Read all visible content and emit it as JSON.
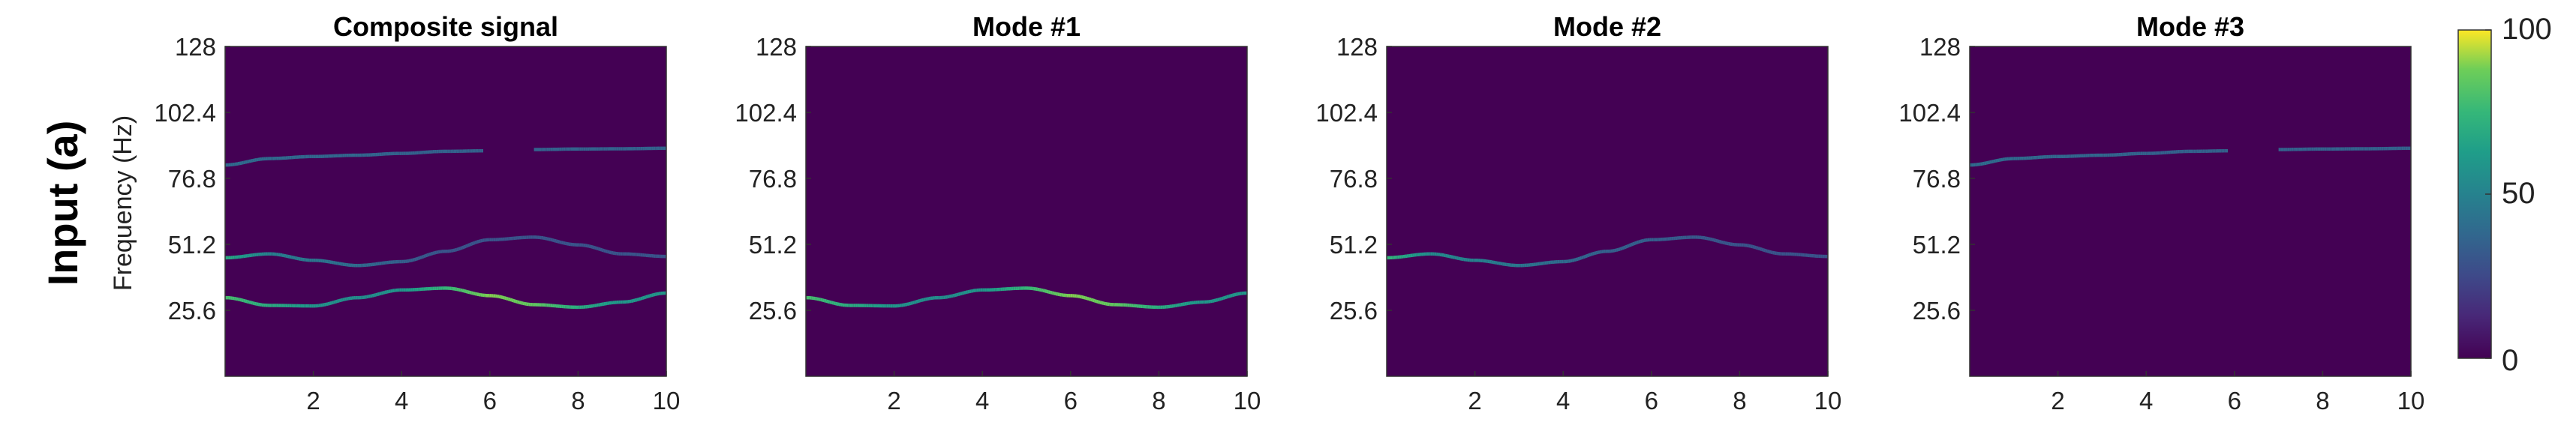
{
  "row_label": "Input (a)",
  "ylabel": "Frequency (Hz)",
  "colorbar": {
    "min": 0,
    "max": 100,
    "ticks": [
      "100",
      "50",
      "0"
    ],
    "colormap": "viridis",
    "colors": {
      "low": "#440154",
      "mid": "#21918c",
      "high": "#fde725"
    }
  },
  "chart_data": [
    {
      "type": "heatmap",
      "title": "Composite signal",
      "xlim": [
        0,
        10
      ],
      "ylim": [
        0,
        128
      ],
      "x_ticks": [
        "2",
        "4",
        "6",
        "8",
        "10"
      ],
      "y_ticks": [
        "128",
        "102.4",
        "76.8",
        "51.2",
        "25.6"
      ],
      "background_value": 0,
      "series": [
        {
          "x": [
            0,
            1,
            2,
            3,
            4,
            5,
            6,
            7,
            8,
            9,
            10
          ],
          "y": [
            30.5,
            27.5,
            27.3,
            30.5,
            33.5,
            34.2,
            31.3,
            27.8,
            26.8,
            28.8,
            32.3
          ],
          "values": [
            80,
            70,
            60,
            55,
            60,
            75,
            90,
            85,
            70,
            60,
            60
          ]
        },
        {
          "x": [
            0,
            1,
            2,
            3,
            4,
            5,
            6,
            7,
            8,
            9,
            10
          ],
          "y": [
            46.0,
            47.5,
            45.0,
            43.0,
            44.5,
            48.5,
            53.0,
            54.0,
            51.0,
            47.5,
            46.5
          ],
          "values": [
            70,
            50,
            45,
            40,
            35,
            30,
            30,
            30,
            30,
            30,
            30
          ]
        },
        {
          "x": [
            0,
            1,
            2,
            3,
            4,
            5,
            5.85
          ],
          "y": [
            82.0,
            84.5,
            85.3,
            85.8,
            86.5,
            87.3,
            87.5
          ],
          "values": [
            40,
            40,
            38,
            38,
            36,
            36,
            36
          ]
        },
        {
          "x": [
            7.0,
            8,
            9,
            10
          ],
          "y": [
            88.0,
            88.2,
            88.3,
            88.5
          ],
          "values": [
            36,
            36,
            36,
            36
          ]
        }
      ]
    },
    {
      "type": "heatmap",
      "title": "Mode #1",
      "xlim": [
        0,
        10
      ],
      "ylim": [
        0,
        128
      ],
      "x_ticks": [
        "2",
        "4",
        "6",
        "8",
        "10"
      ],
      "y_ticks": [
        "128",
        "102.4",
        "76.8",
        "51.2",
        "25.6"
      ],
      "background_value": 0,
      "series": [
        {
          "x": [
            0,
            1,
            2,
            3,
            4,
            5,
            6,
            7,
            8,
            9,
            10
          ],
          "y": [
            30.5,
            27.5,
            27.3,
            30.5,
            33.5,
            34.2,
            31.3,
            27.8,
            26.8,
            28.8,
            32.3
          ],
          "values": [
            80,
            70,
            60,
            55,
            60,
            75,
            90,
            85,
            70,
            60,
            60
          ]
        }
      ]
    },
    {
      "type": "heatmap",
      "title": "Mode #2",
      "xlim": [
        0,
        10
      ],
      "ylim": [
        0,
        128
      ],
      "x_ticks": [
        "2",
        "4",
        "6",
        "8",
        "10"
      ],
      "y_ticks": [
        "128",
        "102.4",
        "76.8",
        "51.2",
        "25.6"
      ],
      "background_value": 0,
      "series": [
        {
          "x": [
            0,
            1,
            2,
            3,
            4,
            5,
            6,
            7,
            8,
            9,
            10
          ],
          "y": [
            46.0,
            47.5,
            45.0,
            43.0,
            44.5,
            48.5,
            53.0,
            54.0,
            51.0,
            47.5,
            46.5
          ],
          "values": [
            75,
            55,
            50,
            45,
            40,
            35,
            35,
            32,
            30,
            30,
            30
          ]
        }
      ]
    },
    {
      "type": "heatmap",
      "title": "Mode #3",
      "xlim": [
        0,
        10
      ],
      "ylim": [
        0,
        128
      ],
      "x_ticks": [
        "2",
        "4",
        "6",
        "8",
        "10"
      ],
      "y_ticks": [
        "128",
        "102.4",
        "76.8",
        "51.2",
        "25.6"
      ],
      "background_value": 0,
      "series": [
        {
          "x": [
            0,
            1,
            2,
            3,
            4,
            5,
            5.85
          ],
          "y": [
            82.0,
            84.5,
            85.3,
            85.8,
            86.5,
            87.3,
            87.5
          ],
          "values": [
            40,
            40,
            38,
            38,
            36,
            36,
            36
          ]
        },
        {
          "x": [
            7.0,
            8,
            9,
            10
          ],
          "y": [
            88.0,
            88.2,
            88.3,
            88.5
          ],
          "values": [
            36,
            36,
            36,
            36
          ]
        }
      ]
    }
  ]
}
